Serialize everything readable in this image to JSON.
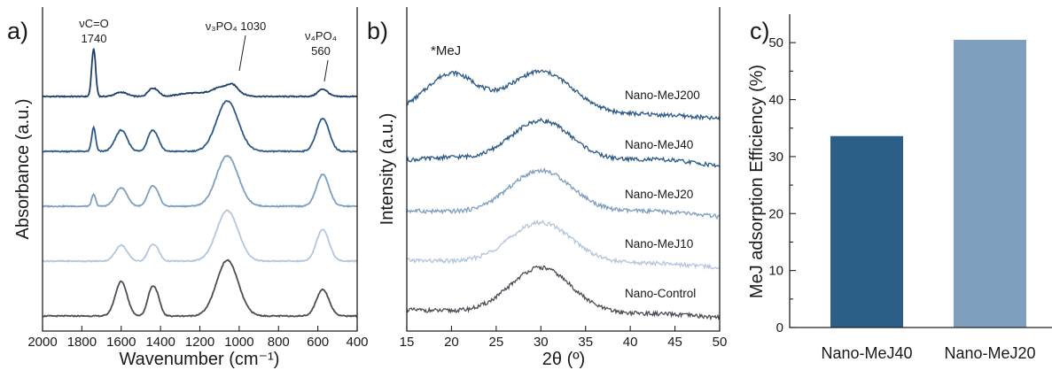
{
  "chart_data": [
    {
      "type": "line",
      "panel_label": "a)",
      "xlabel": "Wavenumber (cm⁻¹)",
      "ylabel": "Absorbance (a.u.)",
      "xlim": [
        2000,
        400
      ],
      "x_reversed": true,
      "x_ticks": [
        "2000",
        "1800",
        "1600",
        "1400",
        "1200",
        "1000",
        "800",
        "600",
        "400"
      ],
      "y_ticks_labels": false,
      "annotations": [
        {
          "lines": [
            "νC=O",
            "1740"
          ]
        },
        {
          "text": "ν₃PO₄ 1030"
        },
        {
          "lines": [
            "ν₄PO₄",
            "560"
          ]
        }
      ],
      "series": [
        {
          "color": "#1f3f6a",
          "offset": 4,
          "peaks": [
            [
              1740,
              0.9,
              10
            ],
            [
              1600,
              0.08,
              30
            ],
            [
              1450,
              0.12,
              18
            ],
            [
              1420,
              0.1,
              18
            ],
            [
              1250,
              0.06,
              60
            ],
            [
              1080,
              0.18,
              60
            ],
            [
              1030,
              0.1,
              25
            ],
            [
              575,
              0.14,
              25
            ]
          ]
        },
        {
          "color": "#2c5a86",
          "offset": 3,
          "peaks": [
            [
              1740,
              0.45,
              10
            ],
            [
              1600,
              0.4,
              30
            ],
            [
              1450,
              0.3,
              20
            ],
            [
              1420,
              0.22,
              20
            ],
            [
              1060,
              0.95,
              55
            ],
            [
              575,
              0.62,
              32
            ]
          ]
        },
        {
          "color": "#7e9fc0",
          "offset": 2,
          "peaks": [
            [
              1740,
              0.22,
              10
            ],
            [
              1600,
              0.35,
              30
            ],
            [
              1450,
              0.28,
              20
            ],
            [
              1420,
              0.22,
              20
            ],
            [
              1060,
              0.95,
              55
            ],
            [
              575,
              0.6,
              32
            ]
          ]
        },
        {
          "color": "#b3c7dc",
          "offset": 1,
          "peaks": [
            [
              1600,
              0.3,
              30
            ],
            [
              1450,
              0.22,
              20
            ],
            [
              1420,
              0.2,
              20
            ],
            [
              1060,
              0.95,
              55
            ],
            [
              575,
              0.6,
              32
            ]
          ]
        },
        {
          "color": "#4a4e55",
          "offset": 0,
          "peaks": [
            [
              1600,
              0.65,
              30
            ],
            [
              1450,
              0.4,
              20
            ],
            [
              1420,
              0.35,
              20
            ],
            [
              1060,
              1.05,
              55
            ],
            [
              575,
              0.5,
              32
            ]
          ]
        }
      ]
    },
    {
      "type": "line",
      "panel_label": "b)",
      "xlabel": "2θ (º)",
      "ylabel": "Intensity (a.u.)",
      "xlim": [
        15,
        50
      ],
      "x_ticks": [
        "15",
        "20",
        "25",
        "30",
        "35",
        "40",
        "45",
        "50"
      ],
      "y_ticks_labels": false,
      "annotations": [
        {
          "text": "*MeJ",
          "x": 19.5
        }
      ],
      "series": [
        {
          "name": "Nano-MeJ200",
          "color": "#2c5a86",
          "offset": 4,
          "peaks": [
            [
              20,
              0.85,
              2.8
            ],
            [
              30,
              0.95,
              3.6
            ],
            [
              43,
              0.1,
              6
            ]
          ]
        },
        {
          "name": "Nano-MeJ40",
          "color": "#2c5a86",
          "offset": 3,
          "peaks": [
            [
              20,
              0.1,
              3
            ],
            [
              30,
              0.95,
              3.5
            ],
            [
              43,
              0.2,
              6
            ]
          ]
        },
        {
          "name": "Nano-MeJ20",
          "color": "#7e9fc0",
          "offset": 2,
          "peaks": [
            [
              30,
              0.95,
              3.5
            ],
            [
              43,
              0.15,
              6
            ]
          ]
        },
        {
          "name": "Nano-MeJ10",
          "color": "#b3c7dc",
          "offset": 1,
          "peaks": [
            [
              30,
              0.9,
              3.5
            ],
            [
              43,
              0.1,
              6
            ]
          ]
        },
        {
          "name": "Nano-Control",
          "color": "#4a4e55",
          "offset": 0,
          "peaks": [
            [
              30,
              1.0,
              3.4
            ],
            [
              43,
              0.08,
              6
            ]
          ]
        }
      ]
    },
    {
      "type": "bar",
      "panel_label": "c)",
      "ylabel": "MeJ adsorption Efficiency (%)",
      "ylim": [
        0,
        55
      ],
      "y_ticks": [
        0,
        10,
        20,
        30,
        40,
        50
      ],
      "categories": [
        "Nano-MeJ40",
        "Nano-MeJ20"
      ],
      "values": [
        33.6,
        50.5
      ],
      "colors": [
        "#2b5f88",
        "#7e9fbd"
      ]
    }
  ]
}
